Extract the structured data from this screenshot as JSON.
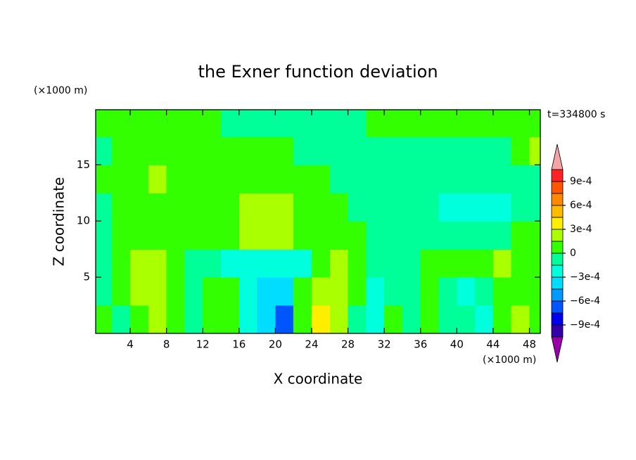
{
  "chart_data": {
    "type": "contour",
    "title": "the Exner function deviation",
    "xlabel": "X coordinate",
    "ylabel": "Z coordinate",
    "xunit": "(×1000 m)",
    "yunit": "(×1000 m)",
    "annotation": "t=334800 s",
    "xlim": [
      0.2,
      49.2
    ],
    "ylim": [
      0,
      19.9
    ],
    "xticks": [
      4,
      8,
      12,
      16,
      20,
      24,
      28,
      32,
      36,
      40,
      44,
      48
    ],
    "yticks": [
      5,
      10,
      15
    ],
    "x": [
      1,
      3,
      5,
      7,
      9,
      11,
      13,
      15,
      17,
      19,
      21,
      23,
      25,
      27,
      29,
      31,
      33,
      35,
      37,
      39,
      41,
      43,
      45,
      47,
      49
    ],
    "y": [
      1.25,
      3.75,
      6.25,
      8.75,
      11.25,
      13.75,
      16.25,
      18.75
    ],
    "z": [
      [
        7e-05,
        -7e-05,
        7e-05,
        0.00022,
        7e-05,
        -7e-05,
        7e-05,
        7e-05,
        -0.00022,
        -0.00037,
        -0.0007,
        7e-05,
        0.00037,
        0.00022,
        -7e-05,
        -0.00022,
        7e-05,
        -7e-05,
        7e-05,
        -7e-05,
        -7e-05,
        -0.00022,
        7e-05,
        0.00022,
        7e-05
      ],
      [
        -7e-05,
        7e-05,
        0.00022,
        0.00022,
        7e-05,
        -7e-05,
        7e-05,
        7e-05,
        -0.00022,
        -0.00037,
        -0.00037,
        7e-05,
        0.00022,
        0.00022,
        7e-05,
        -0.00022,
        -7e-05,
        -7e-05,
        7e-05,
        -7e-05,
        -0.00022,
        -7e-05,
        7e-05,
        7e-05,
        7e-05
      ],
      [
        -7e-05,
        7e-05,
        0.00022,
        0.00022,
        7e-05,
        -7e-05,
        -7e-05,
        -0.00022,
        -0.00022,
        -0.00022,
        -0.00022,
        -0.00022,
        7e-05,
        0.00022,
        7e-05,
        -7e-05,
        -7e-05,
        -7e-05,
        7e-05,
        7e-05,
        7e-05,
        7e-05,
        0.00022,
        7e-05,
        7e-05
      ],
      [
        -7e-05,
        7e-05,
        7e-05,
        7e-05,
        7e-05,
        7e-05,
        7e-05,
        7e-05,
        0.00022,
        0.00022,
        0.00022,
        7e-05,
        7e-05,
        7e-05,
        7e-05,
        -7e-05,
        -7e-05,
        -7e-05,
        -7e-05,
        -7e-05,
        -7e-05,
        -7e-05,
        -7e-05,
        7e-05,
        7e-05
      ],
      [
        -7e-05,
        7e-05,
        7e-05,
        7e-05,
        7e-05,
        7e-05,
        7e-05,
        7e-05,
        0.00022,
        0.00022,
        0.00022,
        7e-05,
        7e-05,
        7e-05,
        -7e-05,
        -7e-05,
        -7e-05,
        -7e-05,
        -7e-05,
        -0.00022,
        -0.00022,
        -0.00022,
        -0.00022,
        -7e-05,
        -7e-05
      ],
      [
        7e-05,
        7e-05,
        7e-05,
        0.00022,
        7e-05,
        7e-05,
        7e-05,
        7e-05,
        7e-05,
        7e-05,
        7e-05,
        7e-05,
        7e-05,
        -7e-05,
        -7e-05,
        -7e-05,
        -7e-05,
        -7e-05,
        -7e-05,
        -7e-05,
        -7e-05,
        -7e-05,
        -7e-05,
        -7e-05,
        -7e-05
      ],
      [
        -7e-05,
        7e-05,
        7e-05,
        7e-05,
        7e-05,
        7e-05,
        7e-05,
        7e-05,
        7e-05,
        7e-05,
        7e-05,
        -7e-05,
        -7e-05,
        -7e-05,
        -7e-05,
        -7e-05,
        -7e-05,
        -7e-05,
        -7e-05,
        -7e-05,
        -7e-05,
        -7e-05,
        -7e-05,
        7e-05,
        0.00022
      ],
      [
        7e-05,
        7e-05,
        7e-05,
        7e-05,
        7e-05,
        7e-05,
        7e-05,
        -7e-05,
        -7e-05,
        -7e-05,
        -7e-05,
        -7e-05,
        -7e-05,
        -7e-05,
        -7e-05,
        7e-05,
        7e-05,
        7e-05,
        7e-05,
        7e-05,
        7e-05,
        7e-05,
        7e-05,
        7e-05,
        7e-05
      ]
    ],
    "levels": [
      -0.00105,
      -0.0009,
      -0.00075,
      -0.0006,
      -0.00045,
      -0.0003,
      -0.00015,
      0,
      0.00015,
      0.0003,
      0.00045,
      0.0006,
      0.00075,
      0.0009,
      0.00105
    ],
    "colors": [
      "#9900aa",
      "#3300aa",
      "#0000ee",
      "#0055ff",
      "#0099ff",
      "#00ddff",
      "#00ffdd",
      "#00ff99",
      "#33ff00",
      "#aaff00",
      "#ffee00",
      "#ffbb00",
      "#ff8800",
      "#ff5500",
      "#ff2222",
      "#f4a4a4"
    ],
    "cbticks": [
      {
        "value": 0.0009,
        "label": "9e-4"
      },
      {
        "value": 0.0006,
        "label": "6e-4"
      },
      {
        "value": 0.0003,
        "label": "3e-4"
      },
      0,
      {
        "value": -0.0003,
        "label": "−3e-4"
      },
      {
        "value": -0.0006,
        "label": "−6e-4"
      },
      {
        "value": -0.0009,
        "label": "−9e-4"
      }
    ]
  }
}
